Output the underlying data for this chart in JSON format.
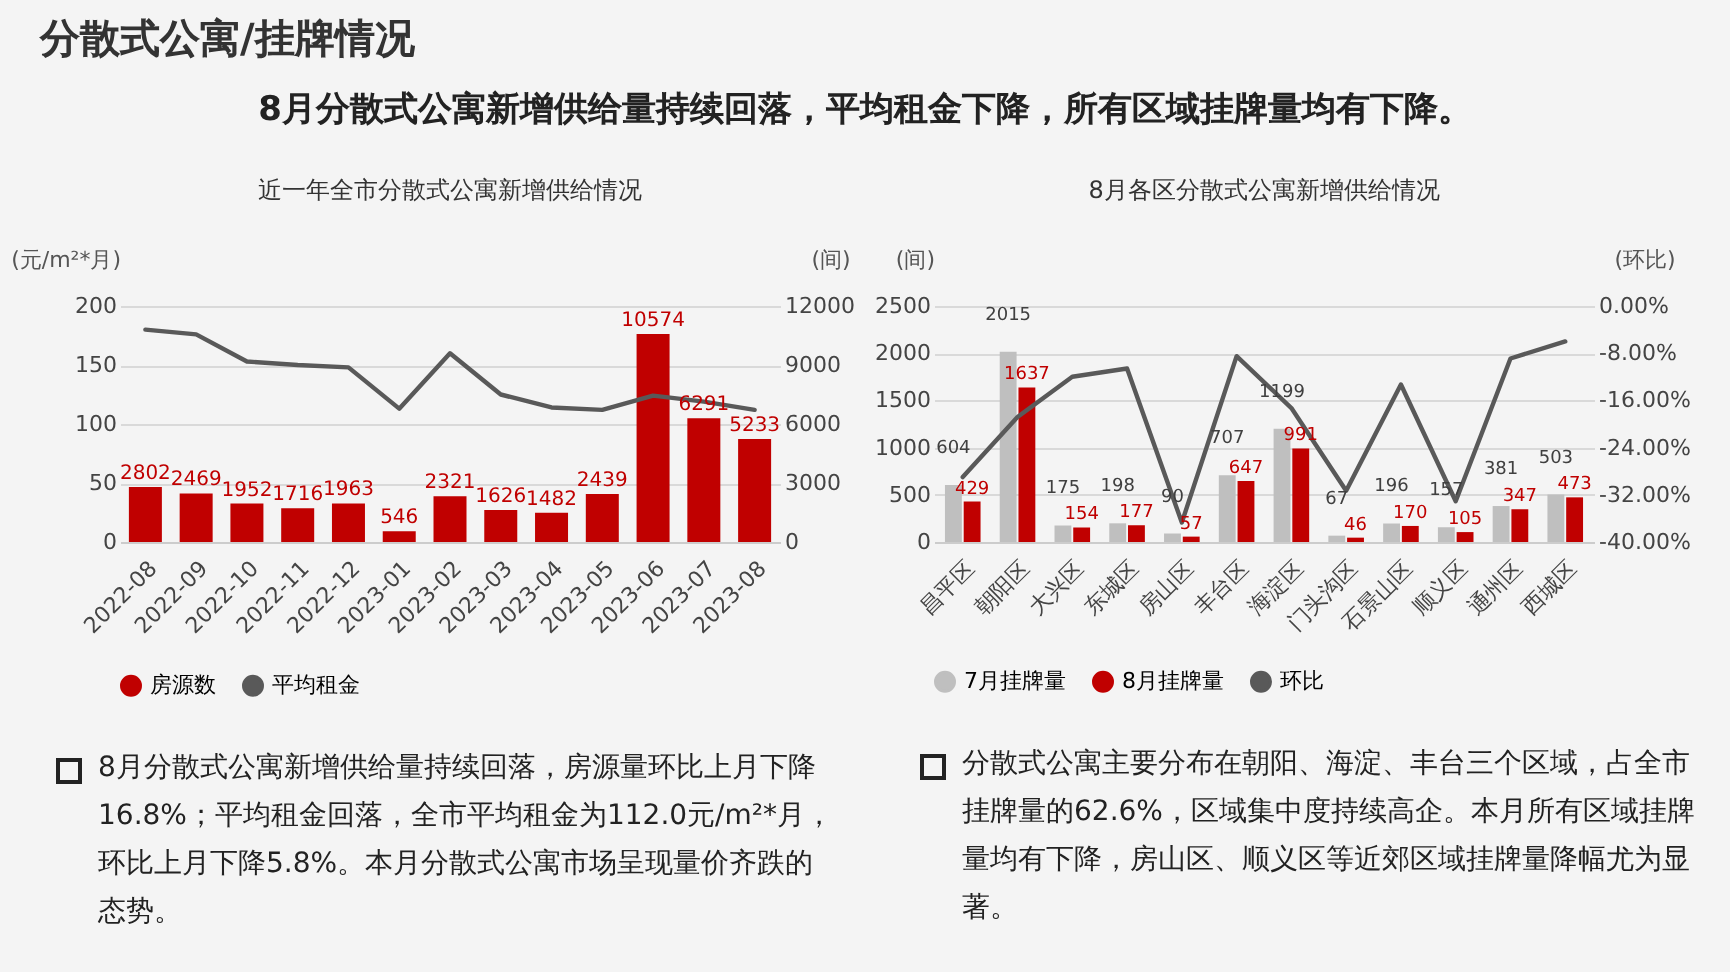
{
  "chart_data": [
    {
      "type": "other",
      "title": "分散式公寓/挂牌情况",
      "subtitle": "8月分散式公寓新增供给量持续回落，平均租金下降，所有区域挂牌量均有下降。"
    },
    {
      "type": "bar",
      "title": "近一年全市分散式公寓新增供给情况",
      "ylabel": "(元/m²*月)",
      "y2label": "(间)",
      "categories": [
        "2022-08",
        "2022-09",
        "2022-10",
        "2022-11",
        "2022-12",
        "2023-01",
        "2023-02",
        "2023-03",
        "2023-04",
        "2023-05",
        "2023-06",
        "2023-07",
        "2023-08"
      ],
      "series": [
        {
          "name": "房源数",
          "type": "bar",
          "axis": "y2",
          "color": "#c00000",
          "values": [
            2802,
            2469,
            1952,
            1716,
            1963,
            546,
            2321,
            1626,
            1482,
            2439,
            10574,
            6291,
            5233
          ],
          "value_labels": [
            "2802",
            "2469",
            "1952",
            "1716",
            "1963",
            "546",
            "2321",
            "1626",
            "1482",
            "2439",
            "10574",
            "6291",
            "5233"
          ]
        },
        {
          "name": "平均租金",
          "type": "line",
          "color": "#595959",
          "values": [
            180,
            176,
            153,
            150,
            148,
            113,
            160,
            125,
            114,
            112,
            124,
            119,
            112
          ]
        }
      ],
      "ylim": [
        0,
        200
      ],
      "yticks": [
        0,
        50,
        100,
        150,
        200
      ],
      "y2lim": [
        0,
        12000
      ],
      "y2ticks": [
        0,
        3000,
        6000,
        9000,
        12000
      ],
      "grid": "y",
      "legend": "bottom",
      "annotations": [
        "8月分散式公寓新增供给量持续回落，房源量环比上月下降16.8%；平均租金回落，全市平均租金为112.0元/m²*月，环比上月下降5.8%。本月分散式公寓市场呈现量价齐跌的态势。"
      ]
    },
    {
      "type": "bar",
      "title": "8月各区分散式公寓新增供给情况",
      "ylabel": "(间)",
      "y2label": "(环比)",
      "categories": [
        "昌平区",
        "朝阳区",
        "大兴区",
        "东城区",
        "房山区",
        "丰台区",
        "海淀区",
        "门头沟区",
        "石景山区",
        "顺义区",
        "通州区",
        "西城区"
      ],
      "series": [
        {
          "name": "7月挂牌量",
          "type": "bar",
          "color": "#bfbfbf",
          "values": [
            604,
            2015,
            175,
            198,
            90,
            707,
            1199,
            67,
            196,
            157,
            381,
            503
          ],
          "value_labels": [
            "604",
            "2015",
            "175",
            "198",
            "90",
            "707",
            "1199",
            "67",
            "196",
            "157",
            "381",
            "503"
          ]
        },
        {
          "name": "8月挂牌量",
          "type": "bar",
          "color": "#c00000",
          "values": [
            429,
            1637,
            154,
            177,
            57,
            647,
            991,
            46,
            170,
            105,
            347,
            473
          ],
          "value_labels": [
            "429",
            "1637",
            "154",
            "177",
            "57",
            "647",
            "991",
            "46",
            "170",
            "105",
            "347",
            "473"
          ]
        },
        {
          "name": "环比",
          "type": "line",
          "axis": "y2",
          "color": "#595959",
          "values": [
            -29.0,
            -18.8,
            -12.0,
            -10.6,
            -36.7,
            -8.5,
            -17.3,
            -31.3,
            -13.3,
            -33.1,
            -8.9,
            -6.0
          ]
        }
      ],
      "ylim": [
        0,
        2500
      ],
      "yticks": [
        0,
        500,
        1000,
        1500,
        2000,
        2500
      ],
      "y2lim": [
        -40,
        0
      ],
      "y2ticks": [
        {
          "value": -40,
          "label": "-40.00%"
        },
        {
          "value": -32,
          "label": "-32.00%"
        },
        {
          "value": -24,
          "label": "-24.00%"
        },
        {
          "value": -16,
          "label": "-16.00%"
        },
        {
          "value": -8,
          "label": "-8.00%"
        },
        {
          "value": 0,
          "label": "0.00%"
        }
      ],
      "grid": "y",
      "legend": "bottom",
      "annotations": [
        "分散式公寓主要分布在朝阳、海淀、丰台三个区域，占全市挂牌量的62.6%，区域集中度持续高企。本月所有区域挂牌量均有下降，房山区、顺义区等近郊区域挂牌量降幅尤为显著。"
      ]
    }
  ]
}
